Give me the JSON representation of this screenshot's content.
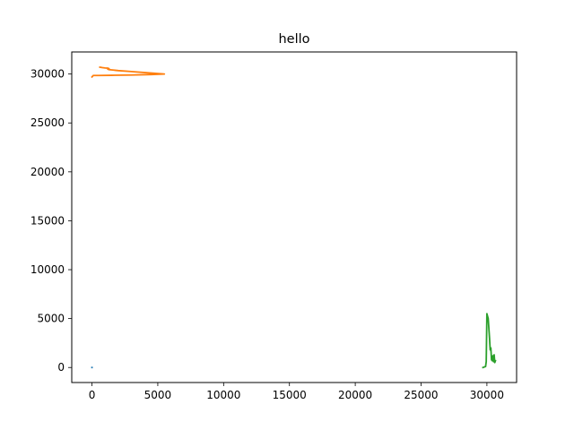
{
  "chart_data": {
    "type": "line",
    "title": "hello",
    "xlabel": "",
    "ylabel": "",
    "xlim": [
      -1536,
      32256
    ],
    "ylim": [
      -1536,
      32256
    ],
    "x_ticks": [
      0,
      5000,
      10000,
      15000,
      20000,
      25000,
      30000
    ],
    "y_ticks": [
      0,
      5000,
      10000,
      15000,
      20000,
      25000,
      30000
    ],
    "x_tick_labels": [
      "0",
      "5000",
      "10000",
      "15000",
      "20000",
      "25000",
      "30000"
    ],
    "y_tick_labels": [
      "0",
      "5000",
      "10000",
      "15000",
      "20000",
      "25000",
      "30000"
    ],
    "grid": false,
    "legend": "none",
    "series": [
      {
        "color": "#1f77b4",
        "x": [
          0,
          0
        ],
        "y": [
          0,
          0
        ]
      },
      {
        "color": "#ff7f0e",
        "x": [
          0,
          100,
          500,
          1500,
          3000,
          4500,
          5500,
          4500,
          3000,
          2000,
          1300,
          1200,
          1300,
          1200,
          1000,
          800,
          700,
          600
        ],
        "y": [
          29700,
          29850,
          29850,
          29870,
          29900,
          29950,
          30000,
          30100,
          30250,
          30350,
          30450,
          30500,
          30550,
          30600,
          30620,
          30650,
          30680,
          30700
        ]
      },
      {
        "color": "#2ca02c",
        "x": [
          29700,
          29800,
          29900,
          29950,
          30000,
          30100,
          30150,
          30200,
          30250,
          30300,
          30350,
          30400,
          30450,
          30500,
          30550,
          30600,
          30650
        ],
        "y": [
          0,
          50,
          100,
          600,
          5500,
          5000,
          4000,
          3000,
          1800,
          2000,
          800,
          700,
          1200,
          600,
          1300,
          500,
          700
        ]
      }
    ]
  }
}
